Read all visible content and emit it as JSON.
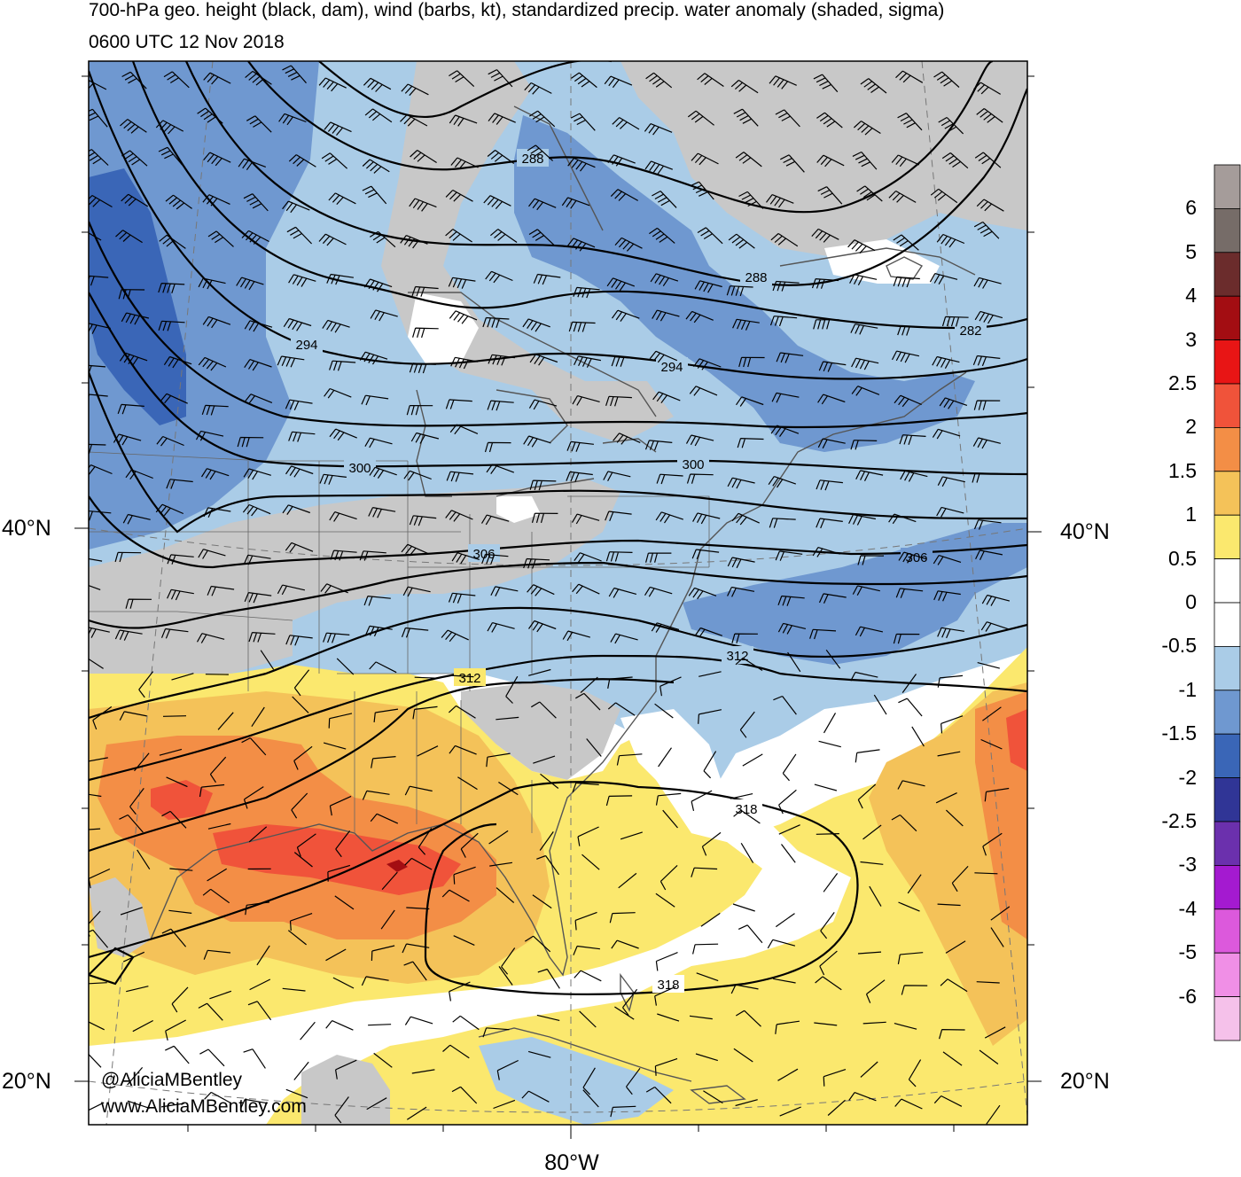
{
  "title": "700-hPa geo. height (black, dam), wind (barbs, kt), standardized precip. water anomaly (shaded, sigma)",
  "valid_time": "0600 UTC 12 Nov 2018",
  "lat_labels": {
    "n40_left": "40°N",
    "n40_right": "40°N",
    "n20_left": "20°N",
    "n20_right": "20°N"
  },
  "lon_label": "80°W",
  "credit": {
    "handle": "@AliciaMBentley",
    "url": "www.AliciaMBentley.com"
  },
  "contour_labels": {
    "h282": "282",
    "h288a": "288",
    "h288b": "288",
    "h294a": "294",
    "h294b": "294",
    "h300a": "300",
    "h300b": "300",
    "h306a": "306",
    "h306b": "306",
    "h312a": "312",
    "h312b": "312",
    "h318a": "318",
    "h318b": "318"
  },
  "colorbar": {
    "labels": [
      "6",
      "5",
      "4",
      "3",
      "2.5",
      "2",
      "1.5",
      "1",
      "0.5",
      "0",
      "-0.5",
      "-1",
      "-1.5",
      "-2",
      "-2.5",
      "-3",
      "-4",
      "-5",
      "-6"
    ],
    "colors": [
      "#a59c9a",
      "#766c68",
      "#6b2c2c",
      "#a30d12",
      "#e81515",
      "#f0533a",
      "#f38e46",
      "#f4c259",
      "#fbe86e",
      "#ffffff",
      "#ffffff",
      "#aacce7",
      "#6f98d0",
      "#3a66b7",
      "#303596",
      "#6b30ad",
      "#a41ad0",
      "#dc59dc",
      "#f08fe6",
      "#f5c1ea"
    ]
  },
  "palette": {
    "ocean": "#ffffff",
    "land_gray": "#c8c8c8",
    "light_blue": "#aacce7",
    "mid_blue": "#6f98d0",
    "dark_blue": "#3a66b7",
    "yellow": "#fbe86e",
    "light_orange": "#f4c259",
    "orange": "#f38e46",
    "red_orange": "#f0533a"
  }
}
